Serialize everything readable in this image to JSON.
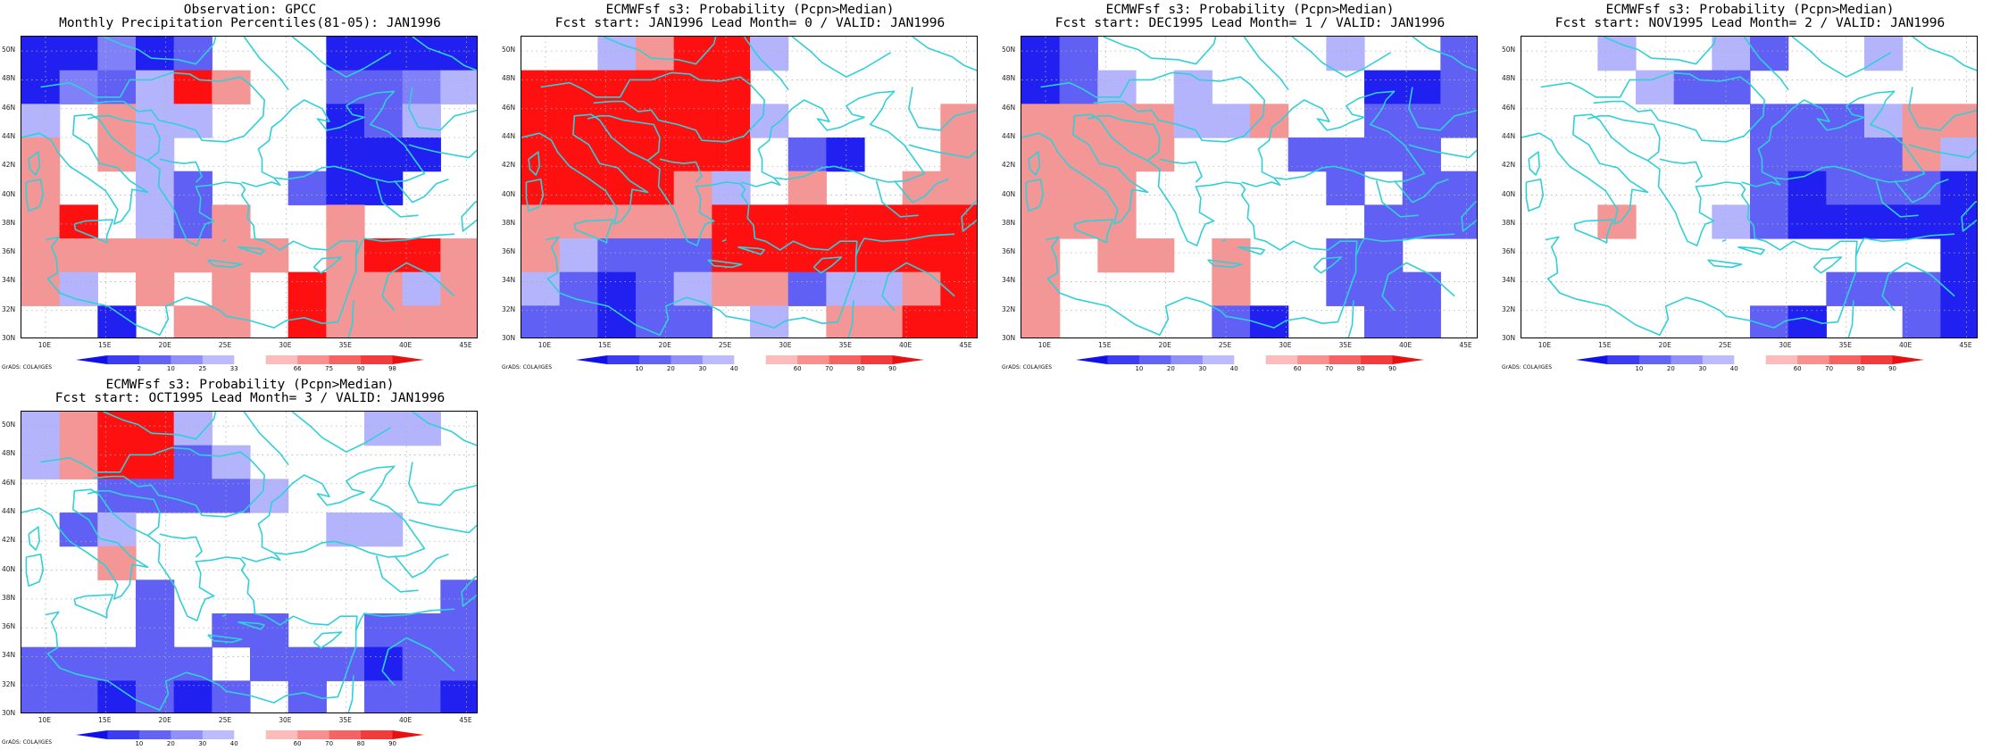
{
  "panels": [
    {
      "title1": "Observation: GPCC",
      "title2": "Monthly Precipitation Percentiles(81-05): JAN1996",
      "colorbar": [
        "2",
        "10",
        "25",
        "33",
        "66",
        "75",
        "90",
        "98"
      ],
      "grid": [
        "BBSBbW..BBBB",
        "BSbsRr..bbSs",
        "s.rss...Bbs.",
        "r.rs....BBB.",
        "r..sb..bBB..",
        "rR.sbr..r...",
        "rrrrrrr.rRRr",
        "rs.r.r.Rrrsr",
        "..B.rr.Rrrrr"
      ]
    },
    {
      "title1": "ECMWFsf s3: Probability (Pcpn>Median)",
      "title2": "Fcst start: JAN1996  Lead Month= 0 / VALID: JAN1996",
      "colorbar": [
        "10",
        "20",
        "30",
        "40",
        "60",
        "70",
        "80",
        "90"
      ],
      "grid": [
        "..srRRs.....",
        "RRRRRR......",
        "RRRRRRs....r",
        "RRRRRR.bB..r",
        "RRRRrs.r..rr",
        "rrrrrRRRRRRR",
        "rsbbbRRRRRRR",
        "sbBbsrrbssrR",
        "bbBbb.s.rrRR"
      ]
    },
    {
      "title1": "ECMWFsf s3: Probability (Pcpn>Median)",
      "title2": "Fcst start: DEC1995  Lead Month= 1 / VALID: JAN1996",
      "colorbar": [
        "10",
        "20",
        "30",
        "40",
        "60",
        "70",
        "80",
        "90"
      ],
      "grid": [
        "Bb......s..b",
        "Bbs.s....BBb",
        "rrrrssr..bbb",
        "rrrr...bbbb.",
        "rrr.....b.bb",
        "rrr......bbb",
        "r.rr.r..bb..",
        "r....r..bbb.",
        "r....bB..bb."
      ]
    },
    {
      "title1": "ECMWFsf s3: Probability (Pcpn>Median)",
      "title2": "Fcst start: NOV1995  Lead Month= 2 / VALID: JAN1996",
      "colorbar": [
        "10",
        "20",
        "30",
        "40",
        "60",
        "70",
        "80",
        "90"
      ],
      "grid": [
        "..s..sb..s..",
        "...sbb......",
        "......bbbsrr",
        "......bbbbrs",
        "......bBbbbB",
        "..r..sbBBBBB",
        "...........B",
        "........bbbB",
        "......bB..bB"
      ]
    },
    {
      "title1": "ECMWFsf s3: Probability (Pcpn>Median)",
      "title2": "Fcst start: OCT1995  Lead Month= 3 / VALID: JAN1996",
      "colorbar": [
        "10",
        "20",
        "30",
        "40",
        "60",
        "70",
        "80",
        "90"
      ],
      "grid": [
        "srRRs....ss.",
        "srRRbs......",
        "..bbbbs.....",
        ".bs.....ss..",
        "..r.........",
        "...b.......b",
        "...b.bb..bbb",
        "bbbbb.bbbBbb",
        "bbBbBb.b.bbB"
      ]
    }
  ],
  "y_labels": [
    "50N",
    "48N",
    "46N",
    "44N",
    "42N",
    "40N",
    "38N",
    "36N",
    "34N",
    "32N",
    "30N"
  ],
  "x_labels": [
    "10E",
    "15E",
    "20E",
    "25E",
    "30E",
    "35E",
    "40E",
    "45E"
  ],
  "grads_credit": "GrADS: COLA/IGES",
  "legend_key": {
    "B": "#2020f0",
    "b": "#6060f4",
    "S": "#8080f8",
    "s": "#b4b4fc",
    "W": "#ffffff",
    ".": "#ffffff",
    "r": "#f49696",
    "R": "#ff1010"
  },
  "colors": {
    "coast": "#30d0d8",
    "grid_dots": "#b0b0b0",
    "cbar_cool": [
      "#1010e8",
      "#3c3cf0",
      "#6464f4",
      "#9090f8",
      "#bcbcfc"
    ],
    "cbar_warm": [
      "#fcbcbc",
      "#f89090",
      "#f46464",
      "#f03c3c",
      "#e81010"
    ]
  }
}
